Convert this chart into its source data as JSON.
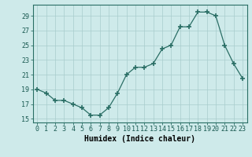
{
  "x": [
    0,
    1,
    2,
    3,
    4,
    5,
    6,
    7,
    8,
    9,
    10,
    11,
    12,
    13,
    14,
    15,
    16,
    17,
    18,
    19,
    20,
    21,
    22,
    23
  ],
  "y": [
    19,
    18.5,
    17.5,
    17.5,
    17,
    16.5,
    15.5,
    15.5,
    16.5,
    18.5,
    21,
    22,
    22,
    22.5,
    24.5,
    25,
    27.5,
    27.5,
    29.5,
    29.5,
    29,
    25,
    22.5,
    20.5
  ],
  "xlabel": "Humidex (Indice chaleur)",
  "xlim": [
    -0.5,
    23.5
  ],
  "ylim": [
    14.5,
    30.5
  ],
  "yticks": [
    15,
    17,
    19,
    21,
    23,
    25,
    27,
    29
  ],
  "xtick_labels": [
    "0",
    "1",
    "2",
    "3",
    "4",
    "5",
    "6",
    "7",
    "8",
    "9",
    "10",
    "11",
    "12",
    "13",
    "14",
    "15",
    "16",
    "17",
    "18",
    "19",
    "20",
    "21",
    "22",
    "23"
  ],
  "line_color": "#2a6e65",
  "bg_color": "#ceeaea",
  "grid_color": "#a8cccc",
  "label_fontsize": 7,
  "tick_fontsize": 6
}
